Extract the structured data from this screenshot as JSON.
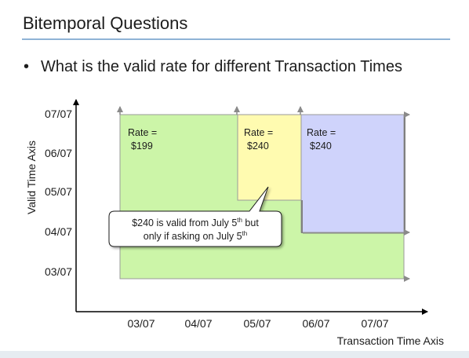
{
  "slide": {
    "title": "Bitemporal Questions",
    "bullet_marker": "•",
    "bullet": "What is the valid rate for different Transaction Times"
  },
  "diagram": {
    "y_axis_title": "Valid Time Axis",
    "x_axis_title": "Transaction Time Axis",
    "y_ticks": [
      "07/07",
      "06/07",
      "05/07",
      "04/07",
      "03/07"
    ],
    "x_ticks": [
      "03/07",
      "04/07",
      "05/07",
      "06/07",
      "07/07"
    ],
    "regions": [
      {
        "label": "Rate =",
        "value": "$199",
        "fill": "#ccf5a8"
      },
      {
        "label": "Rate =",
        "value": "$240",
        "fill": "#fffbb0"
      },
      {
        "label": "Rate =",
        "value": "$240",
        "fill": "#cfd3fb"
      }
    ],
    "callout": {
      "line1_a": "$240 is valid from July 5",
      "line1_sup": "th",
      "line1_b": " but",
      "line2_a": "only if asking on July 5",
      "line2_sup": "th"
    }
  },
  "colors": {
    "title_rule": "#8fb3d6",
    "axis": "#000000",
    "guide_arrows": "#8a8a8a",
    "footer": "#e6ecf1"
  }
}
